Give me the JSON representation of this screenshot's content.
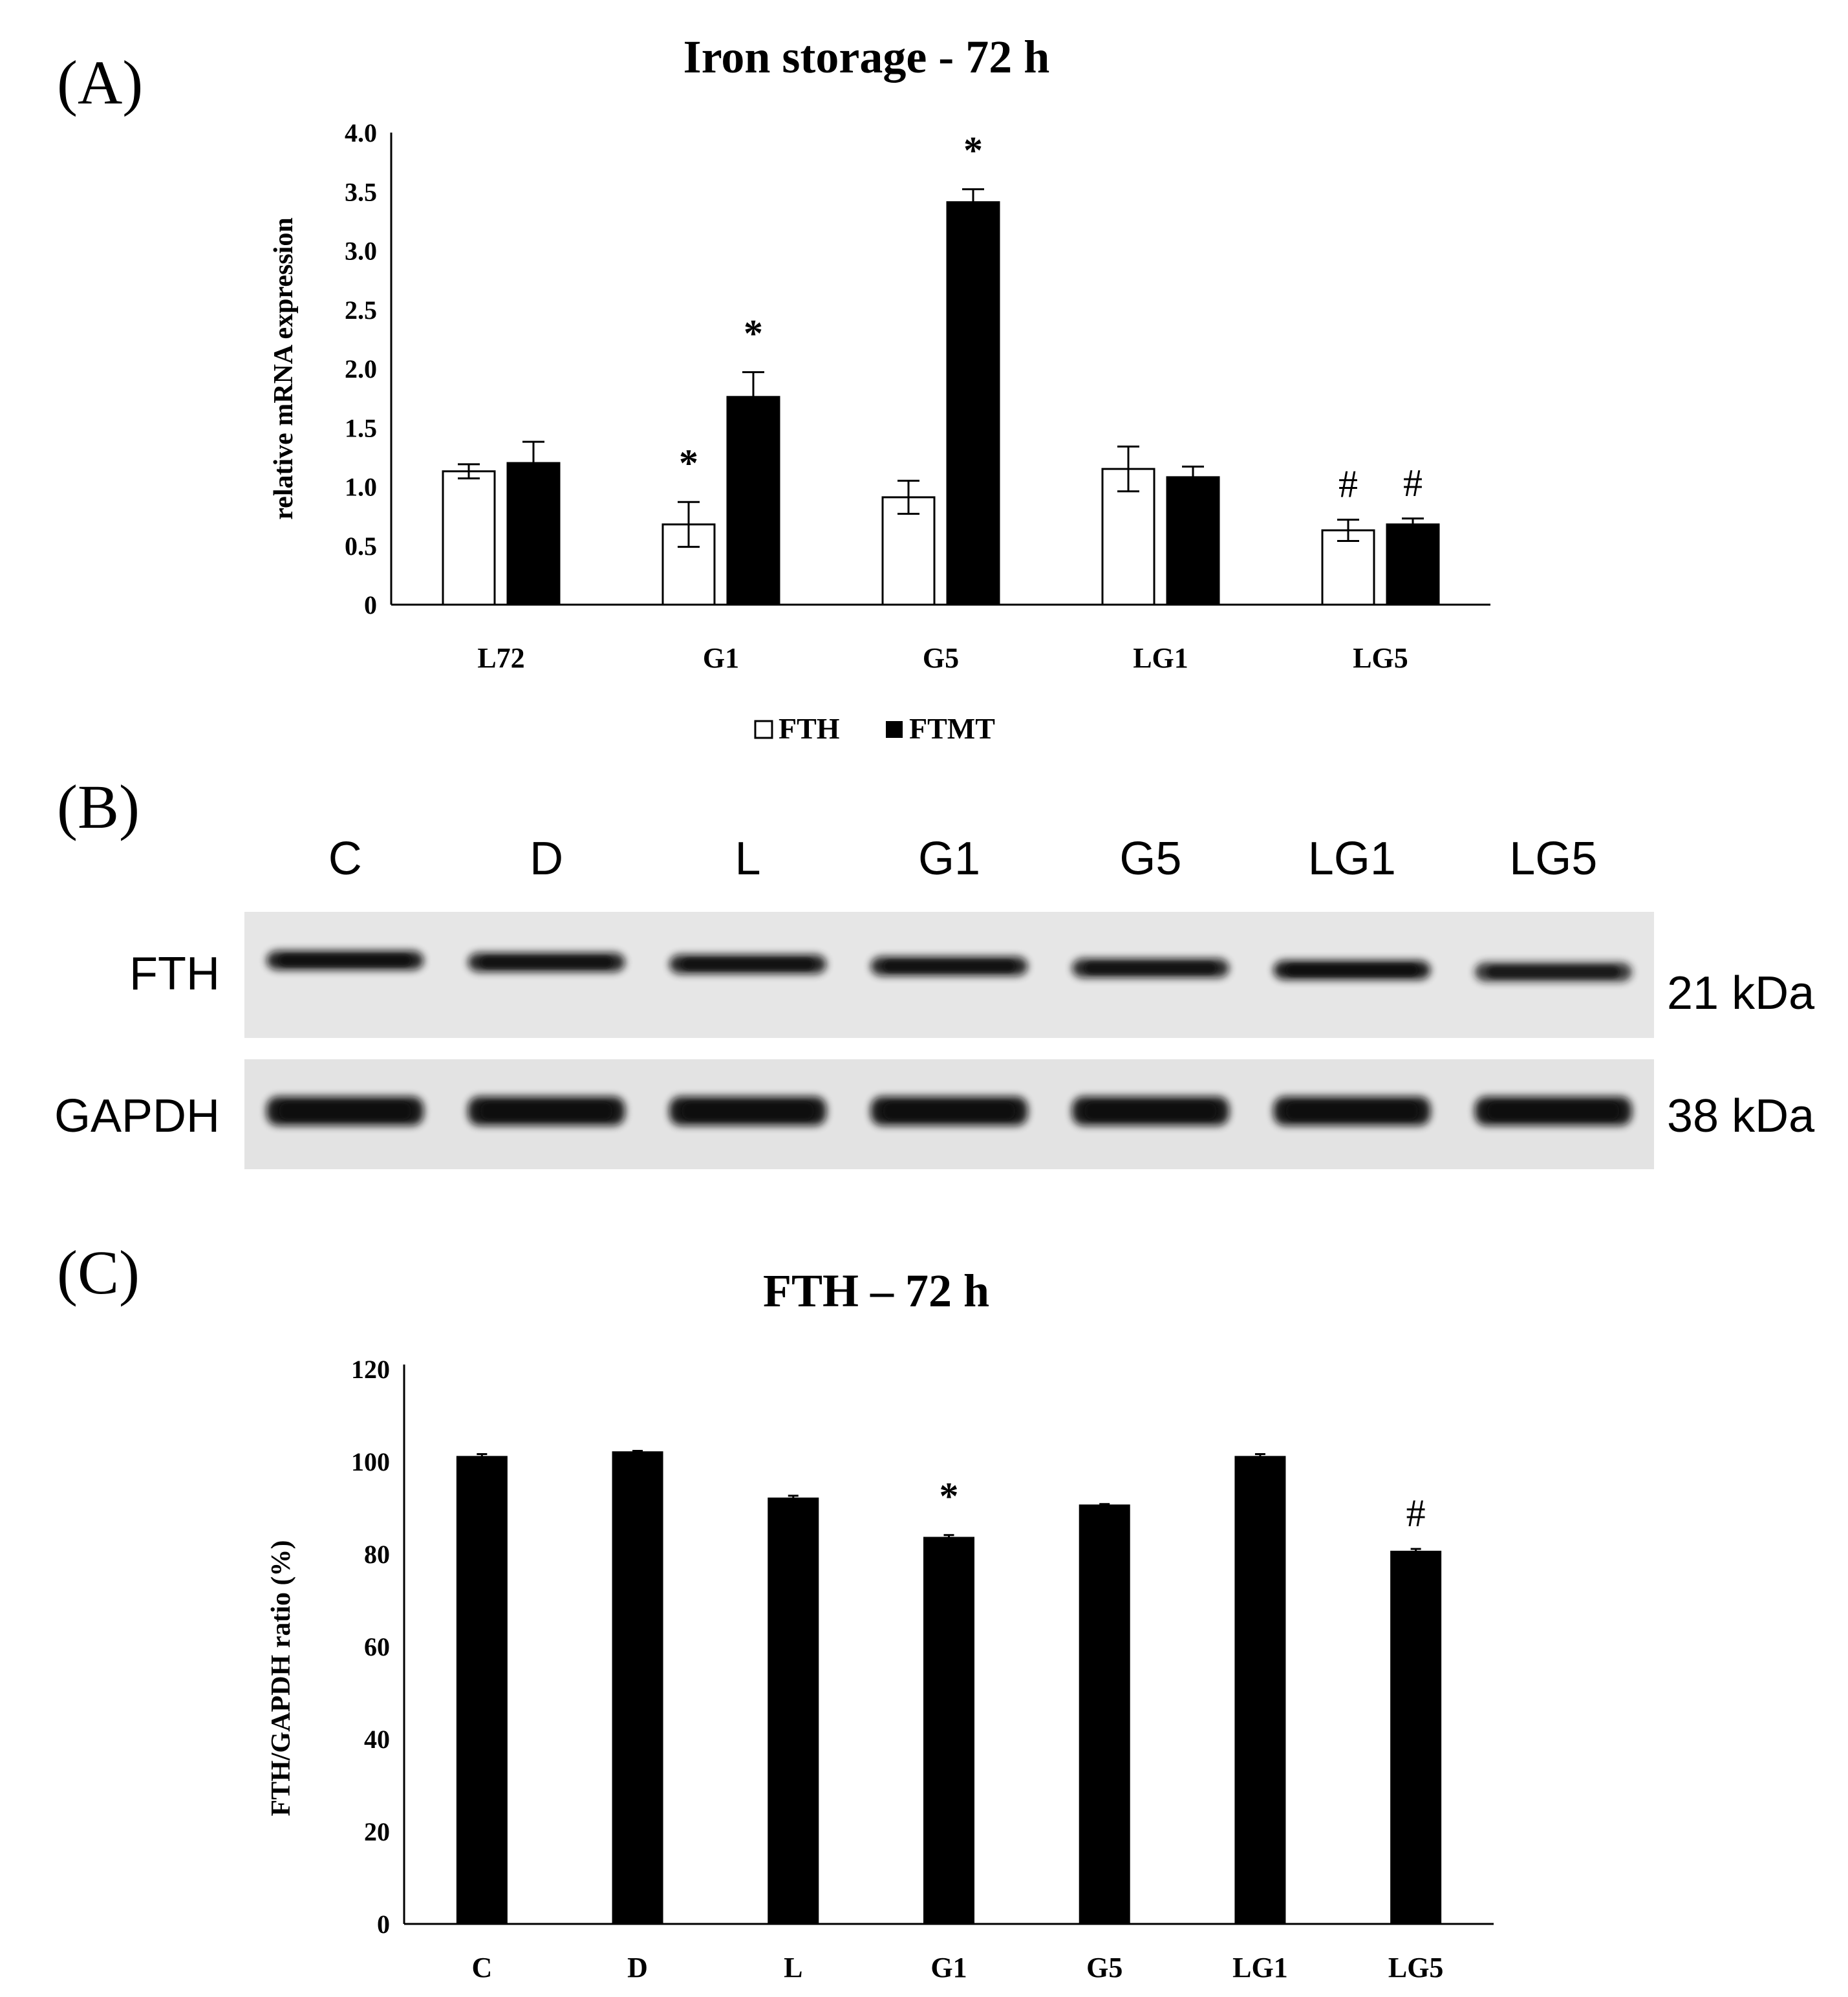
{
  "panel_labels": {
    "a": "(A)",
    "b": "(B)",
    "c": "(C)"
  },
  "chart_data": [
    {
      "type": "bar",
      "title": "Iron storage - 72 h",
      "ylabel": "relative mRNA expression",
      "xlabel": "",
      "categories": [
        "L72",
        "G1",
        "G5",
        "LG1",
        "LG5"
      ],
      "ylim": [
        0,
        4.0
      ],
      "yticks": [
        "0",
        "0.5",
        "1.0",
        "1.5",
        "2.0",
        "2.5",
        "3.0",
        "3.5",
        "4.0"
      ],
      "series": [
        {
          "name": "FTH",
          "values": [
            1.13,
            0.68,
            0.91,
            1.15,
            0.63
          ],
          "errors": [
            0.06,
            0.19,
            0.14,
            0.19,
            0.09
          ],
          "marks": [
            "",
            "*",
            "",
            "",
            "#"
          ],
          "fill": "#ffffff"
        },
        {
          "name": "FTMT",
          "values": [
            1.2,
            1.76,
            3.41,
            1.08,
            0.68
          ],
          "errors": [
            0.18,
            0.21,
            0.11,
            0.09,
            0.05
          ],
          "marks": [
            "",
            "*",
            "*",
            "",
            "#"
          ],
          "fill": "#000000"
        }
      ],
      "legend_position": "bottom-center",
      "grid": false
    },
    {
      "type": "bar",
      "title": "FTH – 72 h",
      "ylabel": "FTH/GAPDH ratio (%)",
      "xlabel": "",
      "categories": [
        "C",
        "D",
        "L",
        "G1",
        "G5",
        "LG1",
        "LG5"
      ],
      "ylim": [
        0,
        120
      ],
      "yticks": [
        "0",
        "20",
        "40",
        "60",
        "80",
        "100",
        "120"
      ],
      "series": [
        {
          "values": [
            101,
            102,
            92,
            83.5,
            90.5,
            101,
            80.5
          ],
          "errors": [
            0.6,
            0.3,
            0.6,
            0.6,
            0.3,
            0.6,
            0.6
          ],
          "marks": [
            "",
            "",
            "",
            "*",
            "",
            "",
            "#"
          ],
          "fill": "#000000"
        }
      ],
      "grid": false
    }
  ],
  "western_blot": {
    "lanes": [
      "C",
      "D",
      "L",
      "G1",
      "G5",
      "LG1",
      "LG5"
    ],
    "rows": [
      {
        "protein": "FTH",
        "size": "21 kDa",
        "intensities": [
          0.9,
          0.85,
          0.85,
          0.85,
          0.8,
          0.95,
          0.7
        ]
      },
      {
        "protein": "GAPDH",
        "size": "38 kDa",
        "intensities": [
          1,
          1,
          1,
          1,
          1,
          1,
          1
        ]
      }
    ]
  }
}
